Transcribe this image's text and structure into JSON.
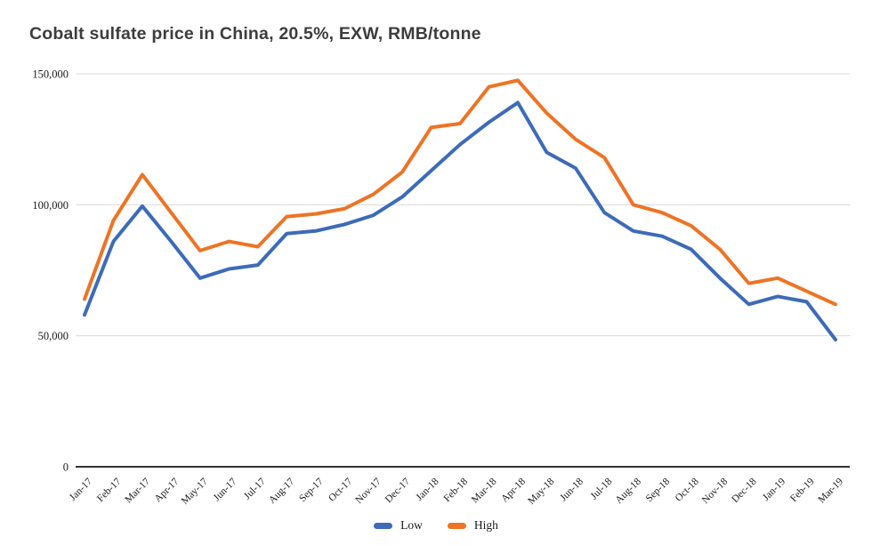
{
  "chart_data": {
    "type": "line",
    "title": "Cobalt sulfate price in China, 20.5%, EXW, RMB/tonne",
    "categories": [
      "Jan-17",
      "Feb-17",
      "Mar-17",
      "Apr-17",
      "May-17",
      "Jun-17",
      "Jul-17",
      "Aug-17",
      "Sep-17",
      "Oct-17",
      "Nov-17",
      "Dec-17",
      "Jan-18",
      "Feb-18",
      "Mar-18",
      "Apr-18",
      "May-18",
      "Jun-18",
      "Jul-18",
      "Aug-18",
      "Sep-18",
      "Oct-18",
      "Nov-18",
      "Dec-18",
      "Jan-19",
      "Feb-19",
      "Mar-19"
    ],
    "series": [
      {
        "name": "Low",
        "color": "#3D6BB8",
        "values": [
          58000,
          86000,
          99500,
          86000,
          72000,
          75500,
          77000,
          89000,
          90000,
          92500,
          96000,
          103000,
          113000,
          123000,
          131500,
          139000,
          120000,
          114000,
          97000,
          90000,
          88000,
          83000,
          72000,
          62000,
          65000,
          63000,
          48500
        ]
      },
      {
        "name": "High",
        "color": "#ED7425",
        "values": [
          64000,
          94000,
          111500,
          97000,
          82500,
          86000,
          84000,
          95500,
          96500,
          98500,
          104000,
          112500,
          129500,
          131000,
          145000,
          147500,
          135000,
          125000,
          118000,
          100000,
          97000,
          92000,
          83000,
          70000,
          72000,
          67000,
          62000
        ]
      }
    ],
    "ylabel": "",
    "xlabel": "",
    "ylim": [
      0,
      150000
    ],
    "y_ticks": [
      {
        "value": 0,
        "label": "0"
      },
      {
        "value": 50000,
        "label": "50,000"
      },
      {
        "value": 100000,
        "label": "100,000"
      },
      {
        "value": 150000,
        "label": "150,000"
      }
    ],
    "grid": "horizontal",
    "legend_position": "bottom-center",
    "line_width": 4,
    "axis_color": "#333333",
    "gridline_color": "#dcdcdc",
    "tick_label_color": "#1a1a1a",
    "title_color": "#3d3d3d"
  }
}
